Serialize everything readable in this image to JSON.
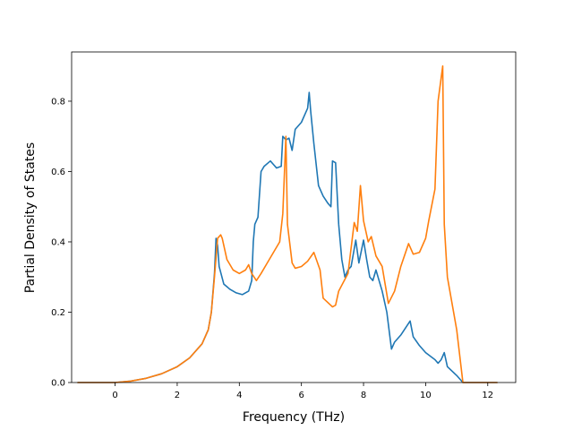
{
  "chart_data": {
    "type": "line",
    "title": "",
    "xlabel": "Frequency (THz)",
    "ylabel": "Partial Density of States",
    "xlim": [
      -1.4,
      12.9
    ],
    "ylim": [
      0.0,
      0.94
    ],
    "x_ticks": [
      0,
      2,
      4,
      6,
      8,
      10,
      12
    ],
    "x_tick_labels": [
      "0",
      "2",
      "4",
      "6",
      "8",
      "10",
      "12"
    ],
    "y_ticks": [
      0.0,
      0.2,
      0.4,
      0.6,
      0.8
    ],
    "y_tick_labels": [
      "0.0",
      "0.2",
      "0.4",
      "0.6",
      "0.8"
    ],
    "grid": false,
    "legend": "none",
    "series": [
      {
        "color": "#1f77b4",
        "points": [
          [
            -1.2,
            0.0
          ],
          [
            0.0,
            0.0
          ],
          [
            0.5,
            0.004
          ],
          [
            1.0,
            0.012
          ],
          [
            1.5,
            0.025
          ],
          [
            2.0,
            0.045
          ],
          [
            2.4,
            0.07
          ],
          [
            2.8,
            0.11
          ],
          [
            3.0,
            0.15
          ],
          [
            3.1,
            0.2
          ],
          [
            3.2,
            0.31
          ],
          [
            3.25,
            0.41
          ],
          [
            3.3,
            0.39
          ],
          [
            3.35,
            0.33
          ],
          [
            3.5,
            0.28
          ],
          [
            3.7,
            0.265
          ],
          [
            3.9,
            0.255
          ],
          [
            4.1,
            0.25
          ],
          [
            4.3,
            0.26
          ],
          [
            4.4,
            0.29
          ],
          [
            4.45,
            0.4
          ],
          [
            4.5,
            0.45
          ],
          [
            4.6,
            0.47
          ],
          [
            4.7,
            0.6
          ],
          [
            4.8,
            0.615
          ],
          [
            5.0,
            0.63
          ],
          [
            5.1,
            0.62
          ],
          [
            5.2,
            0.61
          ],
          [
            5.35,
            0.615
          ],
          [
            5.4,
            0.7
          ],
          [
            5.5,
            0.69
          ],
          [
            5.6,
            0.695
          ],
          [
            5.7,
            0.66
          ],
          [
            5.8,
            0.72
          ],
          [
            6.0,
            0.74
          ],
          [
            6.2,
            0.78
          ],
          [
            6.25,
            0.825
          ],
          [
            6.3,
            0.77
          ],
          [
            6.4,
            0.68
          ],
          [
            6.55,
            0.56
          ],
          [
            6.7,
            0.53
          ],
          [
            6.85,
            0.51
          ],
          [
            6.95,
            0.5
          ],
          [
            7.0,
            0.63
          ],
          [
            7.1,
            0.625
          ],
          [
            7.2,
            0.45
          ],
          [
            7.3,
            0.35
          ],
          [
            7.4,
            0.3
          ],
          [
            7.5,
            0.32
          ],
          [
            7.6,
            0.33
          ],
          [
            7.75,
            0.405
          ],
          [
            7.85,
            0.34
          ],
          [
            8.0,
            0.405
          ],
          [
            8.1,
            0.35
          ],
          [
            8.2,
            0.3
          ],
          [
            8.3,
            0.29
          ],
          [
            8.4,
            0.32
          ],
          [
            8.6,
            0.26
          ],
          [
            8.75,
            0.2
          ],
          [
            8.9,
            0.095
          ],
          [
            9.0,
            0.115
          ],
          [
            9.2,
            0.135
          ],
          [
            9.5,
            0.175
          ],
          [
            9.6,
            0.13
          ],
          [
            9.8,
            0.105
          ],
          [
            10.0,
            0.085
          ],
          [
            10.3,
            0.065
          ],
          [
            10.4,
            0.055
          ],
          [
            10.5,
            0.065
          ],
          [
            10.6,
            0.085
          ],
          [
            10.7,
            0.045
          ],
          [
            11.0,
            0.02
          ],
          [
            11.2,
            0.0
          ],
          [
            12.3,
            0.0
          ]
        ]
      },
      {
        "color": "#ff7f0e",
        "points": [
          [
            -1.2,
            0.0
          ],
          [
            0.0,
            0.0
          ],
          [
            0.5,
            0.004
          ],
          [
            1.0,
            0.012
          ],
          [
            1.5,
            0.025
          ],
          [
            2.0,
            0.045
          ],
          [
            2.4,
            0.07
          ],
          [
            2.8,
            0.11
          ],
          [
            3.0,
            0.15
          ],
          [
            3.1,
            0.2
          ],
          [
            3.2,
            0.3
          ],
          [
            3.3,
            0.41
          ],
          [
            3.4,
            0.42
          ],
          [
            3.45,
            0.41
          ],
          [
            3.6,
            0.35
          ],
          [
            3.8,
            0.32
          ],
          [
            4.0,
            0.31
          ],
          [
            4.2,
            0.32
          ],
          [
            4.3,
            0.335
          ],
          [
            4.4,
            0.31
          ],
          [
            4.55,
            0.29
          ],
          [
            4.7,
            0.31
          ],
          [
            4.9,
            0.34
          ],
          [
            5.1,
            0.37
          ],
          [
            5.3,
            0.4
          ],
          [
            5.4,
            0.48
          ],
          [
            5.5,
            0.7
          ],
          [
            5.55,
            0.45
          ],
          [
            5.7,
            0.34
          ],
          [
            5.8,
            0.325
          ],
          [
            6.0,
            0.33
          ],
          [
            6.2,
            0.345
          ],
          [
            6.4,
            0.37
          ],
          [
            6.6,
            0.32
          ],
          [
            6.7,
            0.24
          ],
          [
            7.0,
            0.215
          ],
          [
            7.1,
            0.22
          ],
          [
            7.2,
            0.26
          ],
          [
            7.5,
            0.31
          ],
          [
            7.7,
            0.455
          ],
          [
            7.8,
            0.43
          ],
          [
            7.9,
            0.56
          ],
          [
            8.0,
            0.46
          ],
          [
            8.15,
            0.4
          ],
          [
            8.25,
            0.415
          ],
          [
            8.4,
            0.36
          ],
          [
            8.6,
            0.33
          ],
          [
            8.8,
            0.225
          ],
          [
            9.0,
            0.26
          ],
          [
            9.2,
            0.33
          ],
          [
            9.45,
            0.395
          ],
          [
            9.6,
            0.365
          ],
          [
            9.8,
            0.37
          ],
          [
            10.0,
            0.41
          ],
          [
            10.1,
            0.46
          ],
          [
            10.3,
            0.55
          ],
          [
            10.4,
            0.8
          ],
          [
            10.55,
            0.9
          ],
          [
            10.6,
            0.45
          ],
          [
            10.7,
            0.3
          ],
          [
            11.0,
            0.15
          ],
          [
            11.2,
            0.0
          ],
          [
            12.3,
            0.0
          ]
        ]
      }
    ]
  }
}
